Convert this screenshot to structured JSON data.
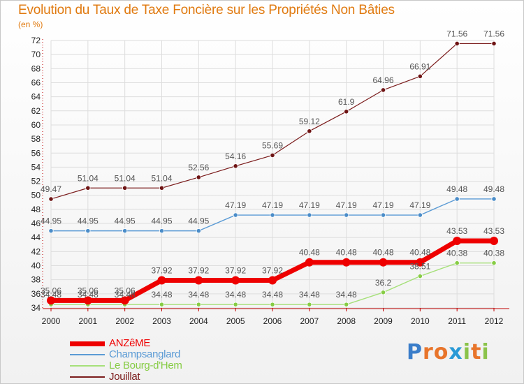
{
  "title": "Evolution du Taux de Taxe Foncière sur les Propriétés Non Bâties",
  "unit_label": "(en %)",
  "brand": "Proxiti",
  "colors": {
    "title": "#e07a10",
    "grid": "#dddddd",
    "axis": "#c00000"
  },
  "chart_data": {
    "type": "line",
    "x": [
      "2000",
      "2001",
      "2002",
      "2003",
      "2004",
      "2005",
      "2006",
      "2007",
      "2008",
      "2009",
      "2010",
      "2011",
      "2012"
    ],
    "ylim": [
      34,
      72
    ],
    "yticks": [
      34,
      36,
      38,
      40,
      42,
      44,
      46,
      48,
      50,
      52,
      54,
      56,
      58,
      60,
      62,
      64,
      66,
      68,
      70,
      72
    ],
    "grid": true,
    "legend_position": "bottom-left",
    "series": [
      {
        "name": "Jouillat",
        "color": "#7b1c1c",
        "line_width": 1.2,
        "marker_fill": "#6e1414",
        "values": [
          49.47,
          51.04,
          51.04,
          51.04,
          52.56,
          54.16,
          55.69,
          59.12,
          61.9,
          64.96,
          66.91,
          71.56,
          71.56
        ],
        "labels": [
          "49.47",
          "51.04",
          "51.04",
          "51.04",
          "52.56",
          "54.16",
          "55.69",
          "59.12",
          "61.9",
          "64.96",
          "66.91",
          "71.56",
          "71.56"
        ]
      },
      {
        "name": "Champsanglard",
        "color": "#5b9bd5",
        "line_width": 1.4,
        "marker_fill": "#4a8cc8",
        "values": [
          44.95,
          44.95,
          44.95,
          44.95,
          44.95,
          47.19,
          47.19,
          47.19,
          47.19,
          47.19,
          47.19,
          49.48,
          49.48
        ],
        "labels": [
          "44.95",
          "44.95",
          "44.95",
          "44.95",
          "44.95",
          "47.19",
          "47.19",
          "47.19",
          "47.19",
          "47.19",
          "47.19",
          "49.48",
          "49.48"
        ]
      },
      {
        "name": "Le Bourg-d'Hem",
        "color": "#a6e07a",
        "line_width": 1.4,
        "marker_fill": "#86cc44",
        "values": [
          34.48,
          34.48,
          34.48,
          34.48,
          34.48,
          34.48,
          34.48,
          34.48,
          34.48,
          36.2,
          38.51,
          40.38,
          40.38
        ],
        "labels": [
          "34.48",
          "34.48",
          "34.48",
          "34.48",
          "34.48",
          "34.48",
          "34.48",
          "34.48",
          "34.48",
          "36.2",
          "38.51",
          "40.38",
          "40.38"
        ]
      },
      {
        "name": "ANZêME",
        "color": "#ee0000",
        "line_width": 7,
        "marker_fill": "#ee0000",
        "values": [
          35.06,
          35.06,
          35.06,
          37.92,
          37.92,
          37.92,
          37.92,
          40.48,
          40.48,
          40.48,
          40.48,
          43.53,
          43.53
        ],
        "labels": [
          "35.06",
          "35.06",
          "35.06",
          "37.92",
          "37.92",
          "37.92",
          "37.92",
          "40.48",
          "40.48",
          "40.48",
          "40.48",
          "43.53",
          "43.53"
        ]
      }
    ],
    "legend_order": [
      3,
      1,
      2,
      0
    ]
  }
}
